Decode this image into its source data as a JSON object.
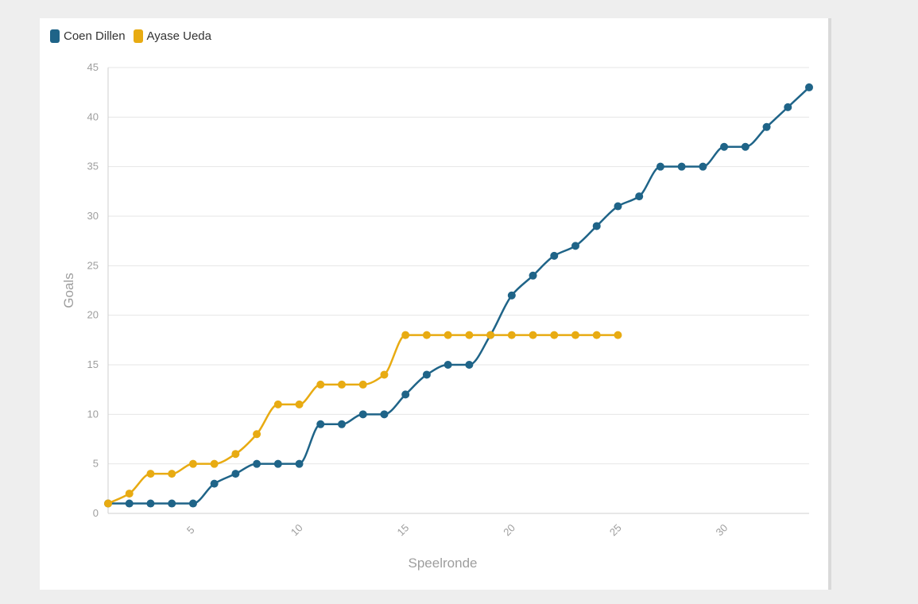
{
  "chart_data": {
    "type": "line",
    "xlabel": "Speelronde",
    "ylabel": "Goals",
    "xlim": [
      1,
      34
    ],
    "ylim": [
      0,
      45
    ],
    "x_ticks": [
      5,
      10,
      15,
      20,
      25,
      30
    ],
    "y_ticks": [
      0,
      5,
      10,
      15,
      20,
      25,
      30,
      35,
      40,
      45
    ],
    "grid": true,
    "legend_position": "top-left",
    "series": [
      {
        "name": "Coen Dillen",
        "color": "#1f6488",
        "x": [
          1,
          2,
          3,
          4,
          5,
          6,
          7,
          8,
          9,
          10,
          11,
          12,
          13,
          14,
          15,
          16,
          17,
          18,
          19,
          20,
          21,
          22,
          23,
          24,
          25,
          26,
          27,
          28,
          29,
          30,
          31,
          32,
          33,
          34
        ],
        "values": [
          1,
          1,
          1,
          1,
          1,
          3,
          4,
          5,
          5,
          5,
          9,
          9,
          10,
          10,
          12,
          14,
          15,
          15,
          18,
          22,
          24,
          26,
          27,
          29,
          31,
          32,
          35,
          35,
          35,
          37,
          37,
          39,
          41,
          43
        ]
      },
      {
        "name": "Ayase Ueda",
        "color": "#e8ab12",
        "x": [
          1,
          2,
          3,
          4,
          5,
          6,
          7,
          8,
          9,
          10,
          11,
          12,
          13,
          14,
          15,
          16,
          17,
          18,
          19,
          20,
          21,
          22,
          23,
          24,
          25
        ],
        "values": [
          1,
          2,
          4,
          4,
          5,
          5,
          6,
          8,
          11,
          11,
          13,
          13,
          13,
          14,
          18,
          18,
          18,
          18,
          18,
          18,
          18,
          18,
          18,
          18,
          18
        ]
      }
    ]
  }
}
